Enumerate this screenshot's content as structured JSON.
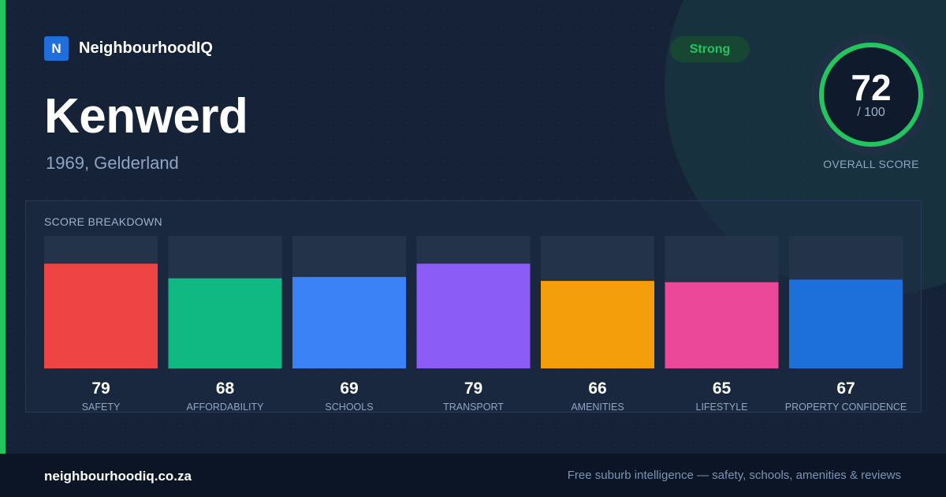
{
  "brand": {
    "logo_letter": "N",
    "name": "NeighbourhoodIQ"
  },
  "suburb": {
    "name": "Kenwerd",
    "location": "1969, Gelderland"
  },
  "badge": {
    "label": "Strong"
  },
  "overall": {
    "score": 72,
    "max_label": "/ 100",
    "label": "OVERALL SCORE"
  },
  "breakdown": {
    "title": "SCORE BREAKDOWN"
  },
  "colors": {
    "accent": "#22c55e",
    "safety": "#ef4444",
    "affordability": "#10b981",
    "schools": "#3b82f6",
    "transport": "#8b5cf6",
    "amenities": "#f59e0b",
    "lifestyle": "#ec4899",
    "property_confidence": "#1d6fd9"
  },
  "chart_data": {
    "type": "bar",
    "title": "SCORE BREAKDOWN",
    "categories": [
      "SAFETY",
      "AFFORDABILITY",
      "SCHOOLS",
      "TRANSPORT",
      "AMENITIES",
      "LIFESTYLE",
      "PROPERTY CONFIDENCE"
    ],
    "values": [
      79,
      68,
      69,
      79,
      66,
      65,
      67
    ],
    "colors": [
      "#ef4444",
      "#10b981",
      "#3b82f6",
      "#8b5cf6",
      "#f59e0b",
      "#ec4899",
      "#1d6fd9"
    ],
    "ylim": [
      0,
      100
    ],
    "grid": false,
    "legend": "none"
  },
  "footer": {
    "url": "neighbourhoodiq.co.za",
    "tagline": "Free suburb intelligence — safety, schools, amenities & reviews"
  }
}
